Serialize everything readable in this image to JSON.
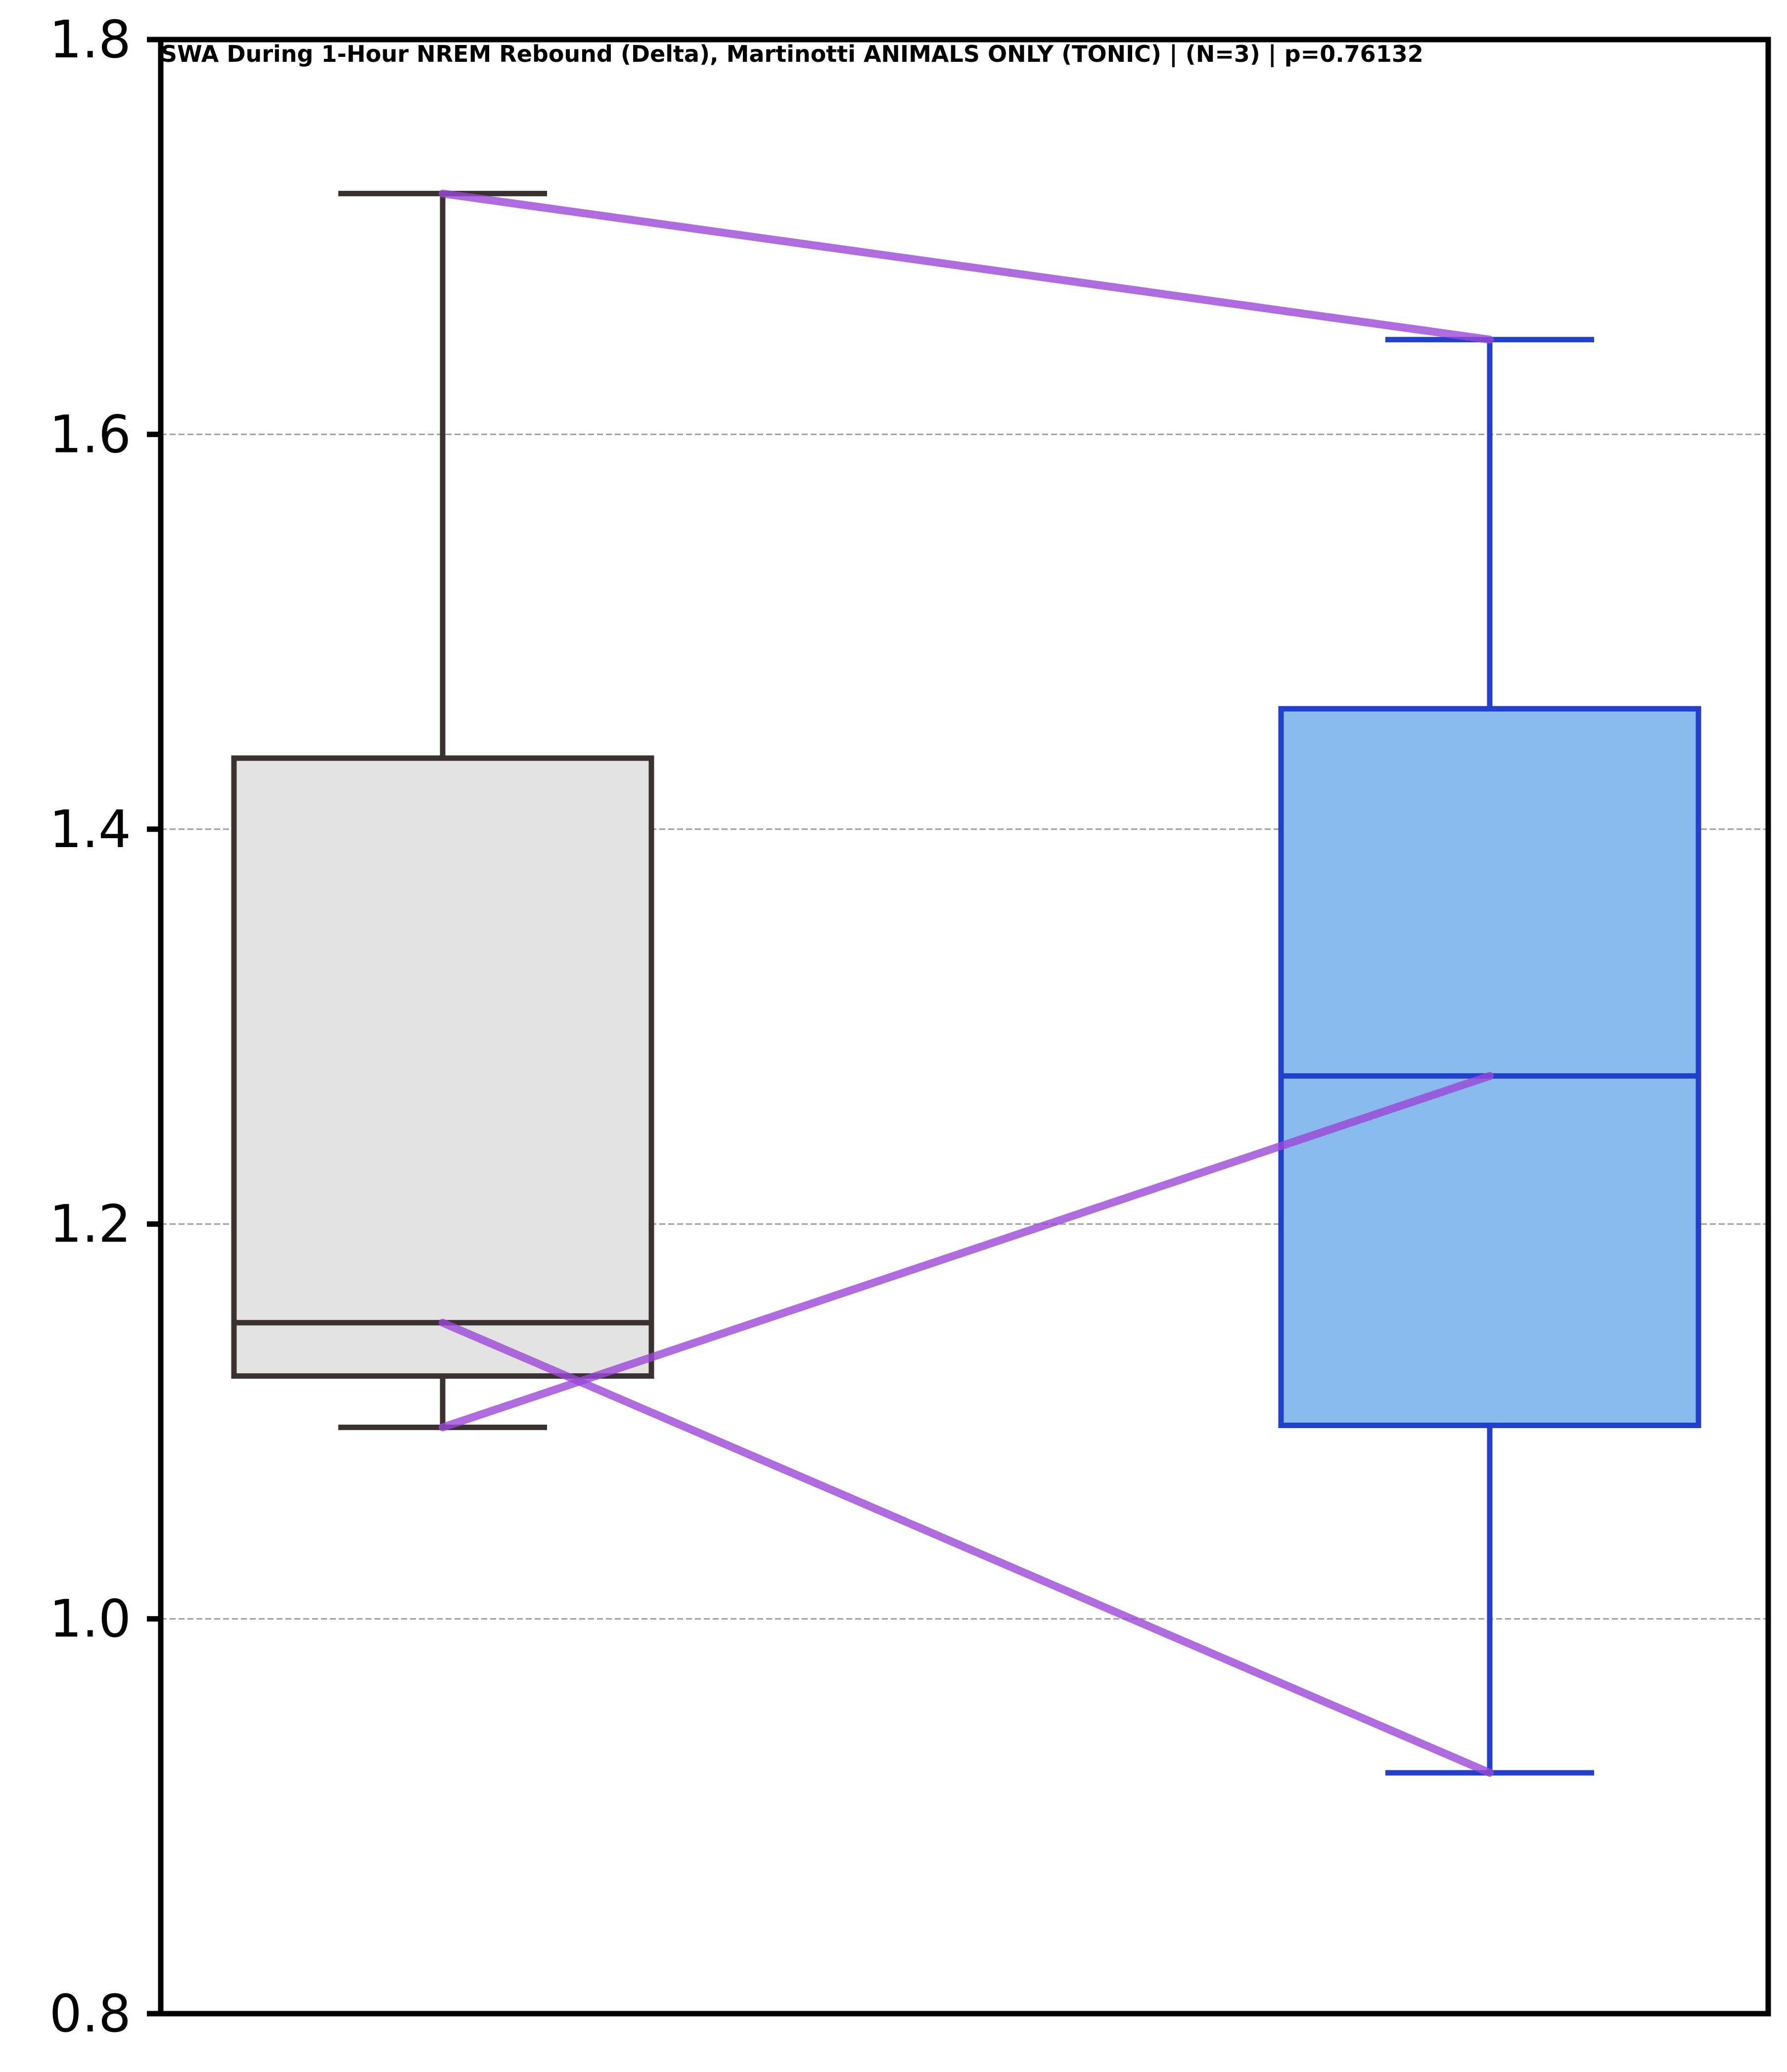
{
  "chart_data": {
    "type": "box",
    "title": "SWA During 1-Hour NREM Rebound (Delta), Martinotti ANIMALS ONLY (TONIC) | (N=3) | p=0.76132",
    "xlabel": "",
    "ylabel": "",
    "ylim": [
      0.8,
      1.8
    ],
    "yticks": [
      0.8,
      1.0,
      1.2,
      1.4,
      1.6,
      1.8
    ],
    "ytick_labels": [
      "0.8",
      "1.0",
      "1.2",
      "1.4",
      "1.6",
      "1.8"
    ],
    "grid": {
      "y": true,
      "x": false,
      "style": "dashed"
    },
    "legend": "none",
    "groups": [
      {
        "whisker_low": 1.097,
        "q1": 1.123,
        "median": 1.15,
        "q3": 1.436,
        "whisker_high": 1.722,
        "face_color": "#e3e3e3",
        "edge_color": "#3a3132"
      },
      {
        "whisker_low": 0.922,
        "q1": 1.098,
        "median": 1.275,
        "q3": 1.461,
        "whisker_high": 1.648,
        "face_color": "#89bbee",
        "edge_color": "#2340cc"
      }
    ],
    "paired_lines": {
      "color": "#9b47d6",
      "pairs": [
        [
          1.722,
          1.648
        ],
        [
          1.15,
          0.922
        ],
        [
          1.097,
          1.275
        ]
      ]
    }
  }
}
